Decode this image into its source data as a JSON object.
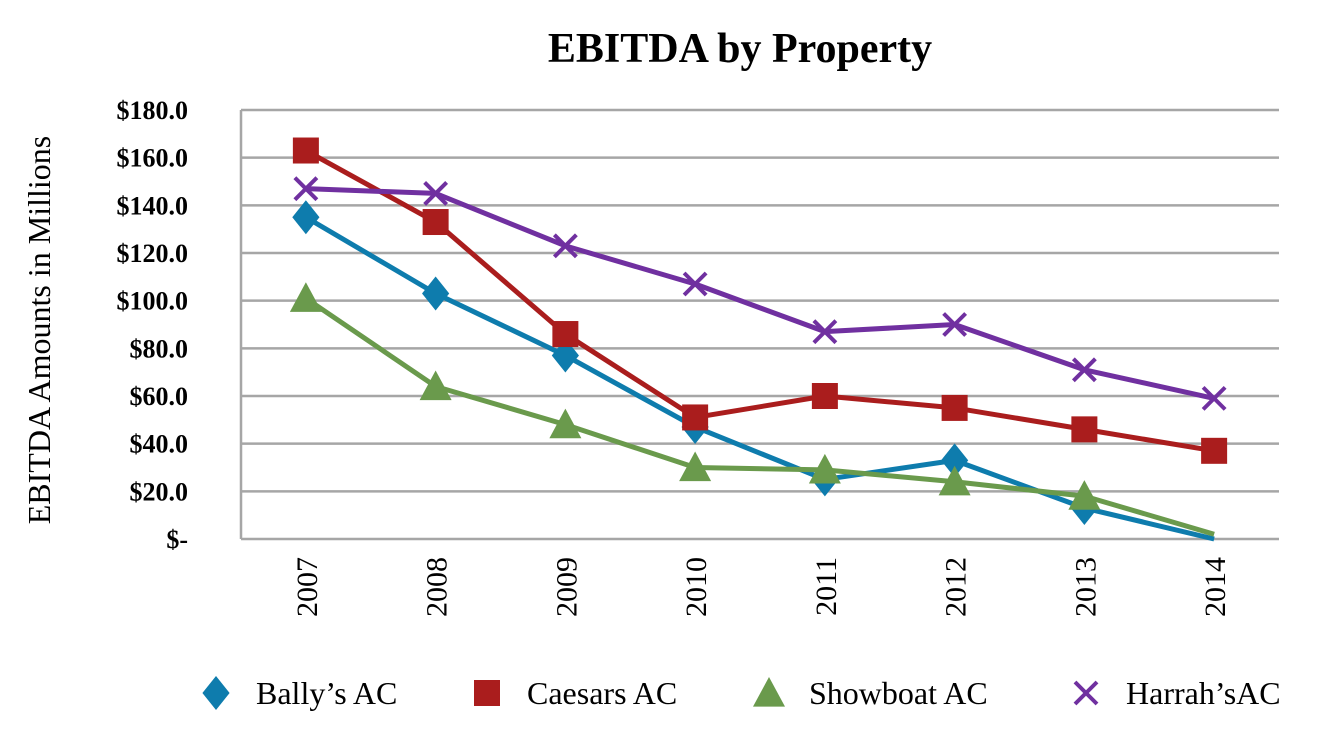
{
  "chart_data": {
    "type": "line",
    "title": "EBITDA by Property",
    "xlabel": "",
    "ylabel": "EBITDA Amounts in Millions",
    "categories": [
      "2007",
      "2008",
      "2009",
      "2010",
      "2011",
      "2012",
      "2013",
      "2014"
    ],
    "ylim": [
      0,
      180
    ],
    "yticks": [
      0,
      20,
      40,
      60,
      80,
      100,
      120,
      140,
      160,
      180
    ],
    "ytick_labels": [
      "$-",
      "$20.0",
      "$40.0",
      "$60.0",
      "$80.0",
      "$100.0",
      "$120.0",
      "$140.0",
      "$160.0",
      "$180.0"
    ],
    "grid": true,
    "legend_position": "bottom",
    "series": [
      {
        "name": "Bally’s AC",
        "color": "#0e7cad",
        "marker": "diamond",
        "values": [
          135,
          103,
          77,
          47,
          25,
          33,
          13,
          0
        ]
      },
      {
        "name": "Caesars AC",
        "color": "#aa1d1d",
        "marker": "square",
        "values": [
          163,
          133,
          86,
          51,
          60,
          55,
          46,
          37
        ]
      },
      {
        "name": "Showboat AC",
        "color": "#6a9a4c",
        "marker": "triangle",
        "values": [
          101,
          64,
          48,
          30,
          29,
          24,
          18,
          2
        ]
      },
      {
        "name": "Harrah’sAC",
        "color": "#7030a0",
        "marker": "x",
        "values": [
          147,
          145,
          123,
          107,
          87,
          90,
          71,
          59
        ]
      }
    ]
  }
}
